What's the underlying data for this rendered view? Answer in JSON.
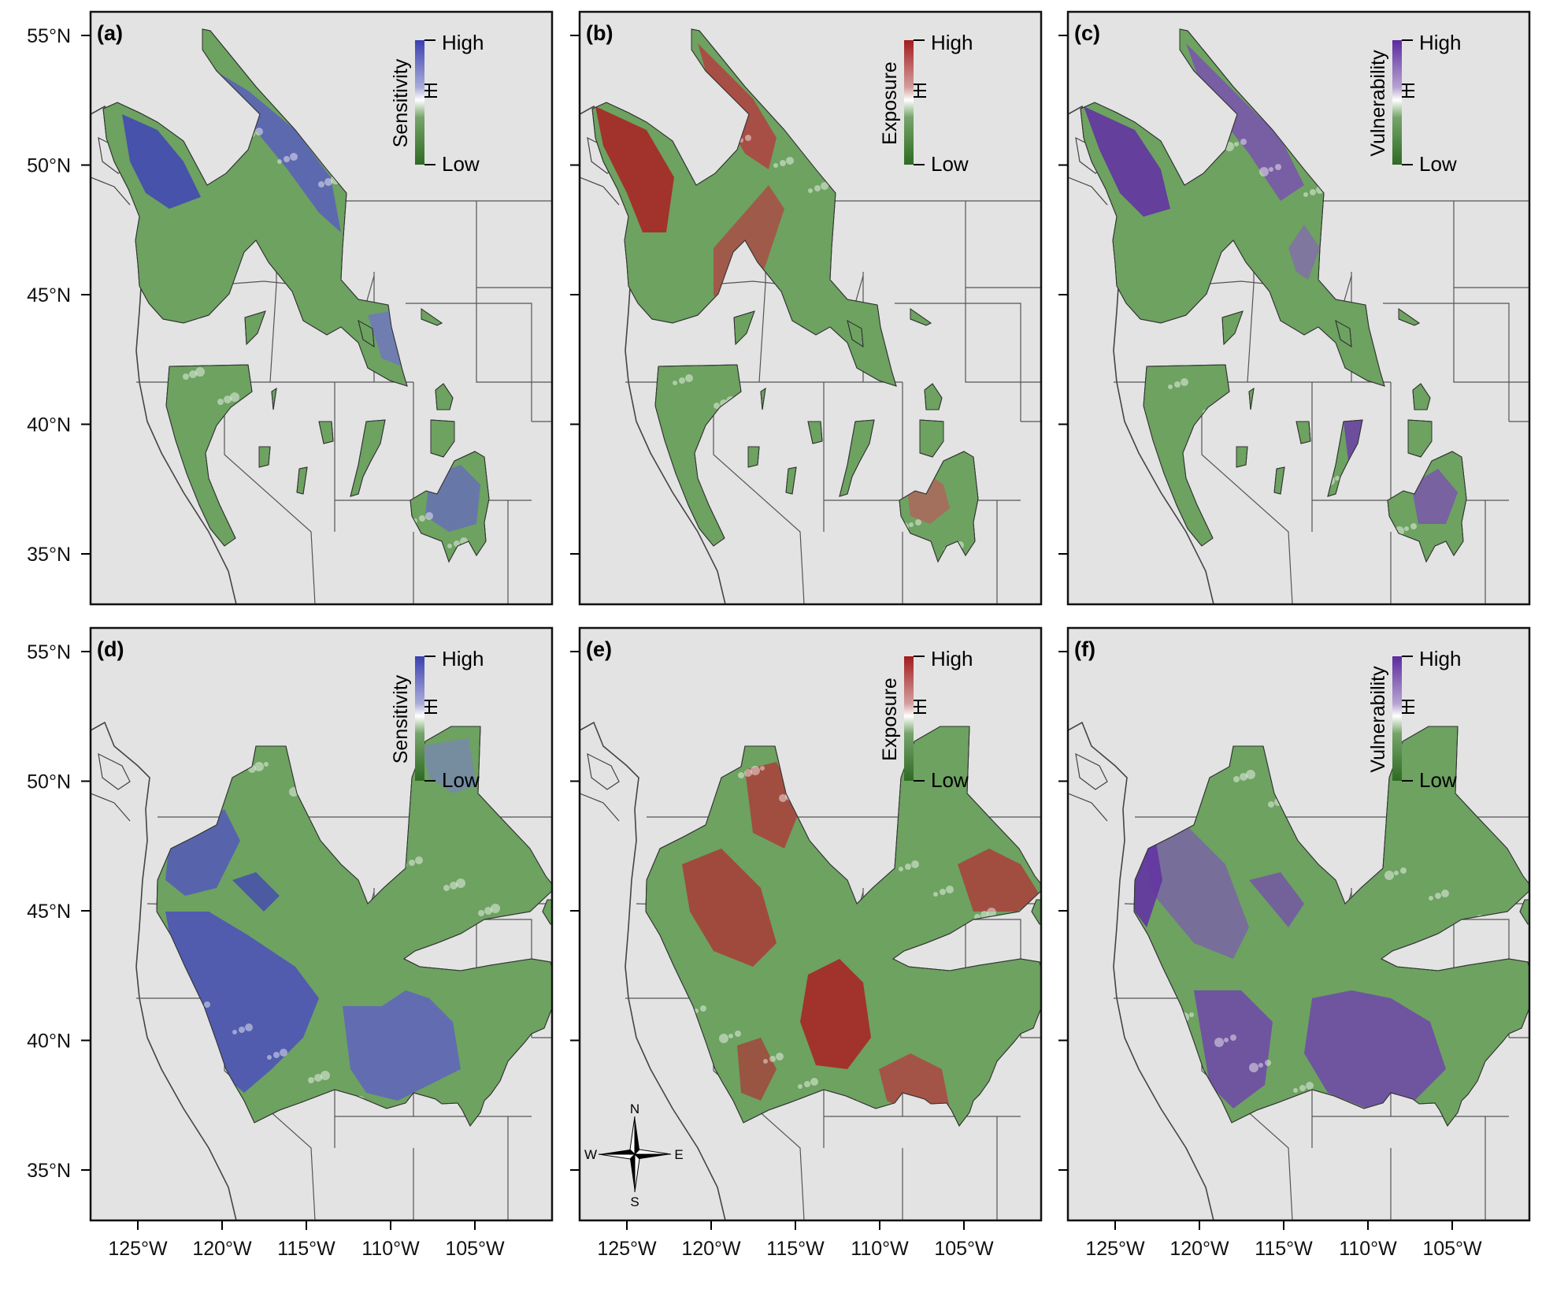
{
  "figure": {
    "background": "#e3e3e3",
    "frame_color": "#111111",
    "boundary_color": "#555555"
  },
  "axes": {
    "lat_labels": [
      "55°N",
      "50°N",
      "45°N",
      "40°N",
      "35°N"
    ],
    "lon_labels": [
      "125°W",
      "120°W",
      "115°W",
      "110°W",
      "105°W"
    ]
  },
  "palettes": {
    "sensitivity": {
      "high": "#3a40b0",
      "low": "#2e6b23"
    },
    "exposure": {
      "high": "#a31c1c",
      "low": "#2e6b23"
    },
    "vulnerability": {
      "high": "#5b2a9e",
      "low": "#2e6b23"
    }
  },
  "panels": [
    {
      "id": "a",
      "label": "(a)",
      "legend_title": "Sensitivity",
      "high": "High",
      "low": "Low",
      "palette": "sensitivity",
      "row": 0
    },
    {
      "id": "b",
      "label": "(b)",
      "legend_title": "Exposure",
      "high": "High",
      "low": "Low",
      "palette": "exposure",
      "row": 0
    },
    {
      "id": "c",
      "label": "(c)",
      "legend_title": "Vulnerability",
      "high": "High",
      "low": "Low",
      "palette": "vulnerability",
      "row": 0
    },
    {
      "id": "d",
      "label": "(d)",
      "legend_title": "Sensitivity",
      "high": "High",
      "low": "Low",
      "palette": "sensitivity",
      "row": 1
    },
    {
      "id": "e",
      "label": "(e)",
      "legend_title": "Exposure",
      "high": "High",
      "low": "Low",
      "palette": "exposure",
      "row": 1
    },
    {
      "id": "f",
      "label": "(f)",
      "legend_title": "Vulnerability",
      "high": "High",
      "low": "Low",
      "palette": "vulnerability",
      "row": 1
    }
  ],
  "compass": {
    "n": "N",
    "s": "S",
    "e": "E",
    "w": "W"
  }
}
